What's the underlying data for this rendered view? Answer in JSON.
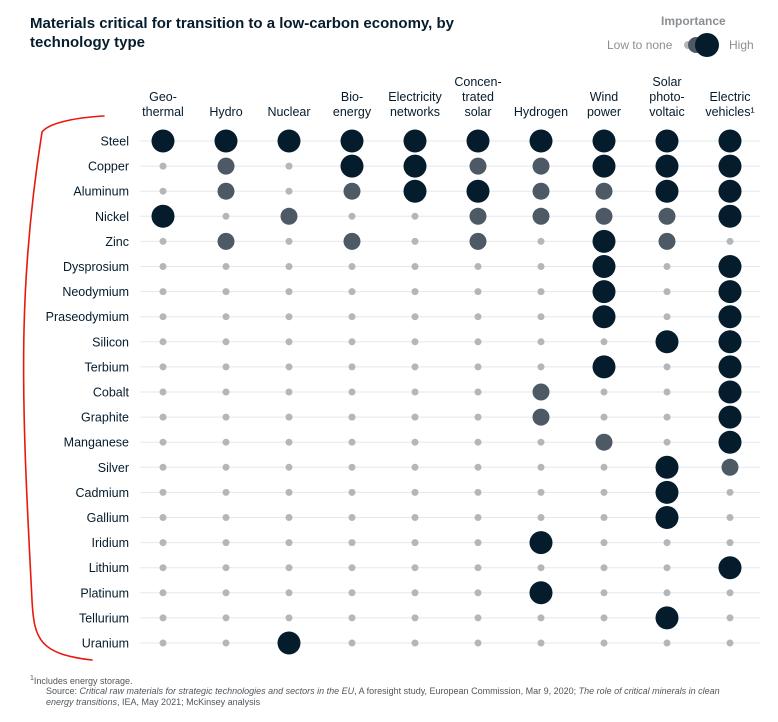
{
  "title": "Materials critical for transition to a low-carbon economy, by technology type",
  "legend": {
    "title": "Importance",
    "low_label": "Low to none",
    "high_label": "High"
  },
  "colors": {
    "level_0": "#b3b7bb",
    "level_1": "#4d5a66",
    "level_2": "#051c2c",
    "gridline": "#e6e8ea",
    "annotation": "#e8180c"
  },
  "chart_data": {
    "type": "table",
    "title": "Materials critical for transition to a low-carbon economy, by technology type",
    "encoding": "importance level: 0 = low to none, 1 = medium, 2 = high",
    "columns": [
      "Geo- thermal",
      "Hydro",
      "Nuclear",
      "Bio- energy",
      "Electricity networks",
      "Concen- trated solar",
      "Hydrogen",
      "Wind power",
      "Solar photo- voltaic",
      "Electric vehicles¹"
    ],
    "rows": [
      {
        "material": "Steel",
        "values": [
          2,
          2,
          2,
          2,
          2,
          2,
          2,
          2,
          2,
          2
        ]
      },
      {
        "material": "Copper",
        "values": [
          0,
          1,
          0,
          2,
          2,
          1,
          1,
          2,
          2,
          2
        ]
      },
      {
        "material": "Aluminum",
        "values": [
          0,
          1,
          0,
          1,
          2,
          2,
          1,
          1,
          2,
          2
        ]
      },
      {
        "material": "Nickel",
        "values": [
          2,
          0,
          1,
          0,
          0,
          1,
          1,
          1,
          1,
          2
        ]
      },
      {
        "material": "Zinc",
        "values": [
          0,
          1,
          0,
          1,
          0,
          1,
          0,
          2,
          1,
          0
        ]
      },
      {
        "material": "Dysprosium",
        "values": [
          0,
          0,
          0,
          0,
          0,
          0,
          0,
          2,
          0,
          2
        ]
      },
      {
        "material": "Neodymium",
        "values": [
          0,
          0,
          0,
          0,
          0,
          0,
          0,
          2,
          0,
          2
        ]
      },
      {
        "material": "Praseodymium",
        "values": [
          0,
          0,
          0,
          0,
          0,
          0,
          0,
          2,
          0,
          2
        ]
      },
      {
        "material": "Silicon",
        "values": [
          0,
          0,
          0,
          0,
          0,
          0,
          0,
          0,
          2,
          2
        ]
      },
      {
        "material": "Terbium",
        "values": [
          0,
          0,
          0,
          0,
          0,
          0,
          0,
          2,
          0,
          2
        ]
      },
      {
        "material": "Cobalt",
        "values": [
          0,
          0,
          0,
          0,
          0,
          0,
          1,
          0,
          0,
          2
        ]
      },
      {
        "material": "Graphite",
        "values": [
          0,
          0,
          0,
          0,
          0,
          0,
          1,
          0,
          0,
          2
        ]
      },
      {
        "material": "Manganese",
        "values": [
          0,
          0,
          0,
          0,
          0,
          0,
          0,
          1,
          0,
          2
        ]
      },
      {
        "material": "Silver",
        "values": [
          0,
          0,
          0,
          0,
          0,
          0,
          0,
          0,
          2,
          1
        ]
      },
      {
        "material": "Cadmium",
        "values": [
          0,
          0,
          0,
          0,
          0,
          0,
          0,
          0,
          2,
          0
        ]
      },
      {
        "material": "Gallium",
        "values": [
          0,
          0,
          0,
          0,
          0,
          0,
          0,
          0,
          2,
          0
        ]
      },
      {
        "material": "Iridium",
        "values": [
          0,
          0,
          0,
          0,
          0,
          0,
          2,
          0,
          0,
          0
        ]
      },
      {
        "material": "Lithium",
        "values": [
          0,
          0,
          0,
          0,
          0,
          0,
          0,
          0,
          0,
          2
        ]
      },
      {
        "material": "Platinum",
        "values": [
          0,
          0,
          0,
          0,
          0,
          0,
          2,
          0,
          0,
          0
        ]
      },
      {
        "material": "Tellurium",
        "values": [
          0,
          0,
          0,
          0,
          0,
          0,
          0,
          0,
          2,
          0
        ]
      },
      {
        "material": "Uranium",
        "values": [
          0,
          0,
          2,
          0,
          0,
          0,
          0,
          0,
          0,
          0
        ]
      }
    ]
  },
  "footnote": "¹Includes energy storage.",
  "source": {
    "prefix": "Source: ",
    "ref1": "Critical raw materials for strategic technologies and sectors in the EU",
    "mid": ", A foresight study, European Commission, Mar 9, 2020; ",
    "ref2": "The role of critical minerals in clean energy transitions",
    "suffix": ", IEA, May 2021; McKinsey analysis"
  }
}
